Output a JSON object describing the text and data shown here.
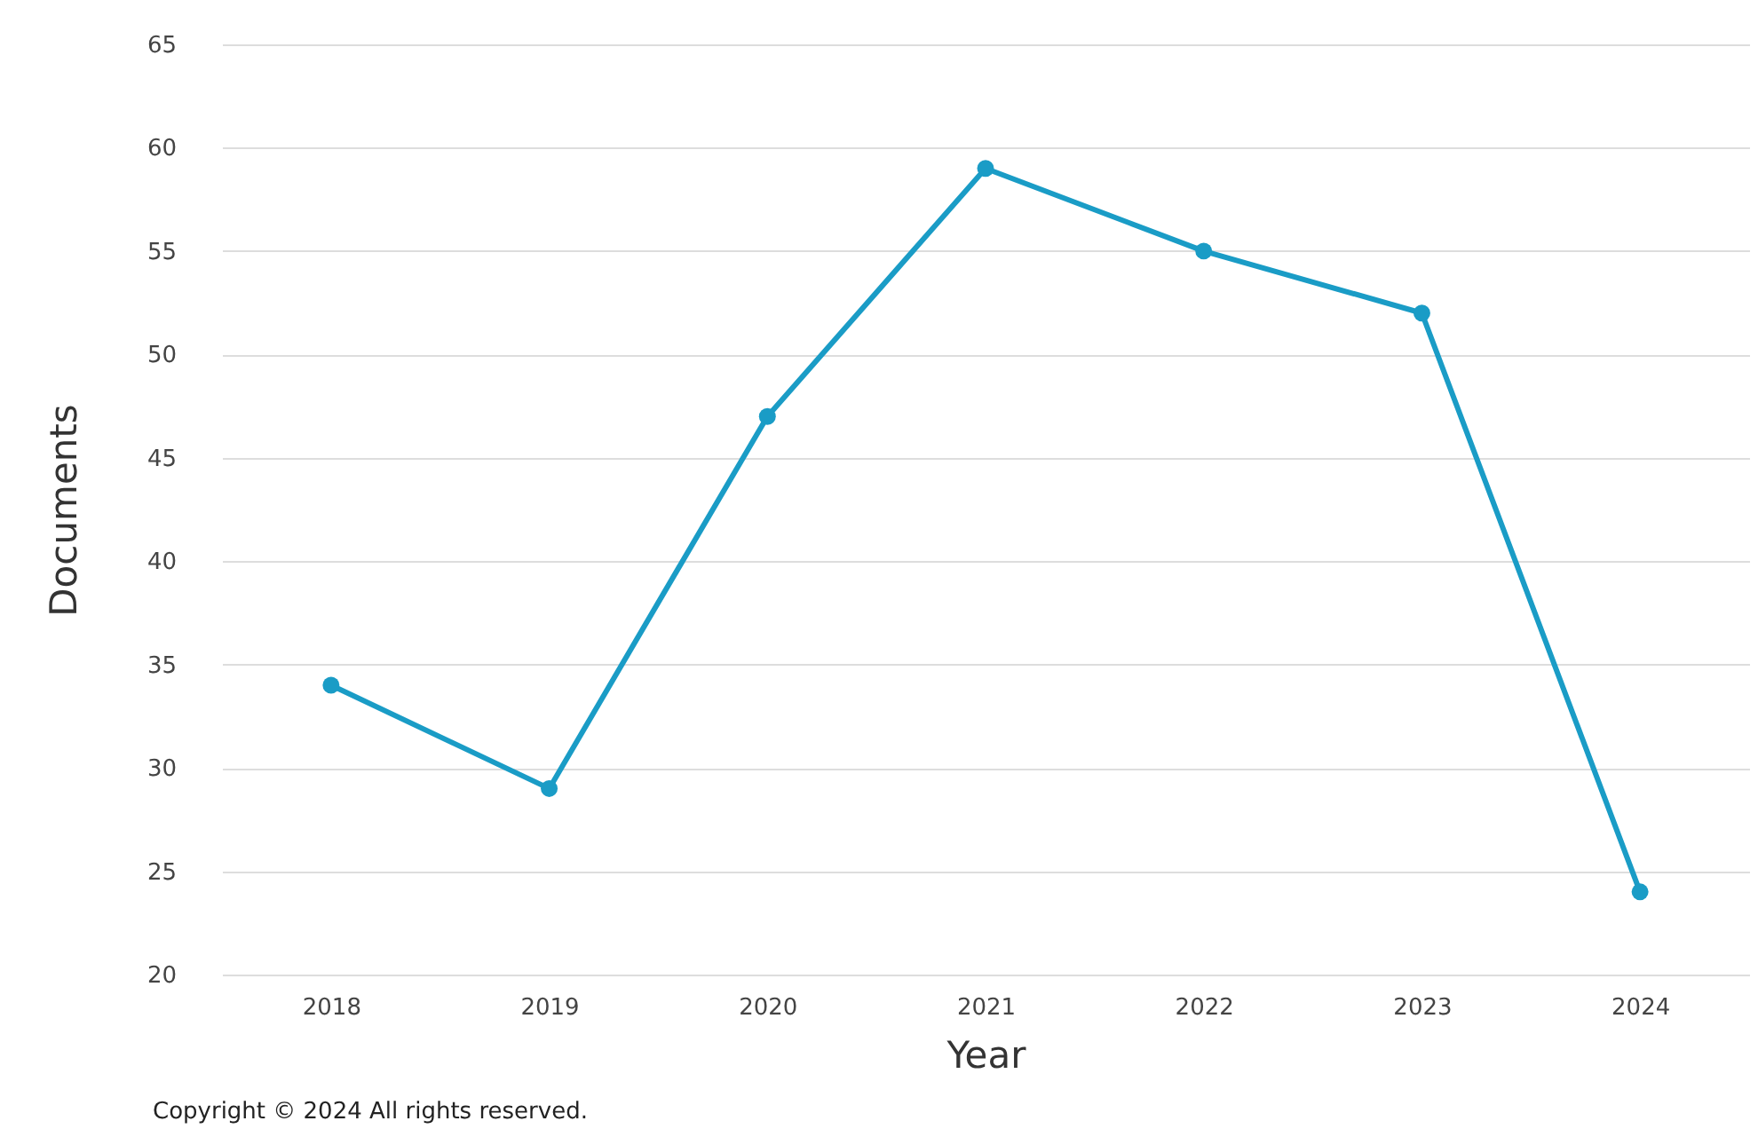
{
  "chart_data": {
    "type": "line",
    "xlabel": "Year",
    "ylabel": "Documents",
    "categories": [
      "2018",
      "2019",
      "2020",
      "2021",
      "2022",
      "2023",
      "2024"
    ],
    "series": [
      {
        "color": "#1a9cc6",
        "values": [
          34,
          29,
          47,
          59,
          55,
          52,
          24
        ]
      }
    ],
    "ylim": [
      20,
      65
    ],
    "yticks": [
      20,
      25,
      30,
      35,
      40,
      45,
      50,
      55,
      60,
      65
    ],
    "grid": "y",
    "marker": "circle",
    "line_style": "solid",
    "legend": false,
    "annotations": [
      "Copyright © 2024 All rights reserved."
    ]
  }
}
